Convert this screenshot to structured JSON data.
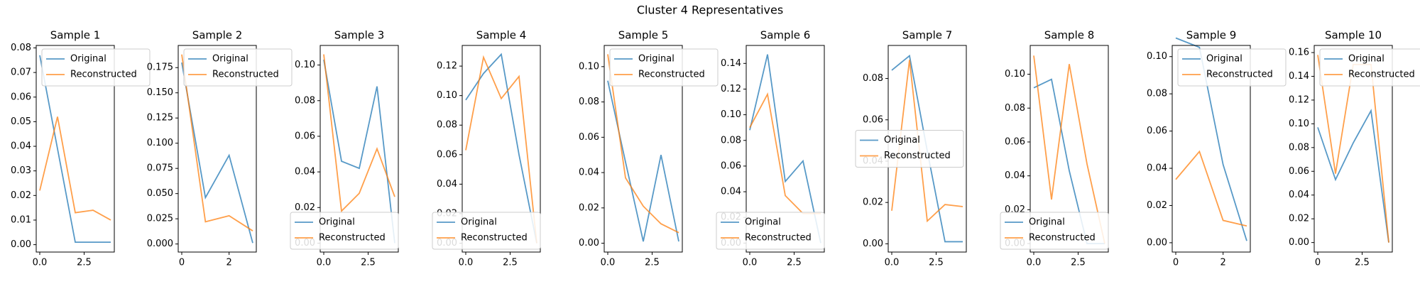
{
  "title": "Cluster 4 Representatives",
  "chart_data": [
    {
      "type": "line",
      "title": "Sample 1",
      "x": [
        0,
        1,
        2,
        3,
        4
      ],
      "series": [
        {
          "name": "Original",
          "color": "#1f77b4",
          "values": [
            0.077,
            0.039,
            0.001,
            0.001,
            0.001
          ]
        },
        {
          "name": "Reconstructed",
          "color": "#ff7f0e",
          "values": [
            0.022,
            0.052,
            0.013,
            0.014,
            0.01
          ]
        }
      ],
      "xlim": [
        -0.2,
        4.2
      ],
      "xticks": [
        {
          "value": 0,
          "label": "0.0"
        },
        2.5
      ],
      "ylim": [
        -0.003,
        0.081
      ],
      "yticks": [
        {
          "value": 0,
          "label": "0.00"
        },
        0.01,
        0.02,
        0.03,
        0.04,
        0.05,
        0.06,
        0.07,
        0.08
      ],
      "legend": "upper right"
    },
    {
      "type": "line",
      "title": "Sample 2",
      "x": [
        0,
        1,
        2,
        3
      ],
      "series": [
        {
          "name": "Original",
          "color": "#1f77b4",
          "values": [
            0.18,
            0.046,
            0.088,
            0.001
          ]
        },
        {
          "name": "Reconstructed",
          "color": "#ff7f0e",
          "values": [
            0.188,
            0.022,
            0.028,
            0.013
          ]
        }
      ],
      "xlim": [
        -0.15,
        3.15
      ],
      "xticks": [
        0,
        2
      ],
      "ylim": [
        -0.008,
        0.197
      ],
      "yticks": [
        {
          "value": 0,
          "label": "0.000"
        },
        0.025,
        {
          "value": 0.05,
          "label": "0.050"
        },
        0.075,
        {
          "value": 0.1,
          "label": "0.100"
        },
        0.125,
        {
          "value": 0.15,
          "label": "0.150"
        },
        0.175
      ],
      "legend": "upper right"
    },
    {
      "type": "line",
      "title": "Sample 3",
      "x": [
        0,
        1,
        2,
        3,
        4
      ],
      "series": [
        {
          "name": "Original",
          "color": "#1f77b4",
          "values": [
            0.103,
            0.046,
            0.042,
            0.088,
            0.0
          ]
        },
        {
          "name": "Reconstructed",
          "color": "#ff7f0e",
          "values": [
            0.106,
            0.018,
            0.028,
            0.053,
            0.026
          ]
        }
      ],
      "xlim": [
        -0.2,
        4.2
      ],
      "xticks": [
        {
          "value": 0,
          "label": "0.0"
        },
        2.5
      ],
      "ylim": [
        -0.005,
        0.111
      ],
      "yticks": [
        {
          "value": 0,
          "label": "0.00"
        },
        0.02,
        0.04,
        0.06,
        0.08,
        {
          "value": 0.1,
          "label": "0.10"
        }
      ],
      "legend": "lower left"
    },
    {
      "type": "line",
      "title": "Sample 4",
      "x": [
        0,
        1,
        2,
        3,
        4
      ],
      "series": [
        {
          "name": "Original",
          "color": "#1f77b4",
          "values": [
            0.097,
            0.115,
            0.128,
            0.06,
            0.0
          ]
        },
        {
          "name": "Reconstructed",
          "color": "#ff7f0e",
          "values": [
            0.063,
            0.126,
            0.098,
            0.113,
            0.0
          ]
        }
      ],
      "xlim": [
        -0.2,
        4.2
      ],
      "xticks": [
        {
          "value": 0,
          "label": "0.0"
        },
        2.5
      ],
      "ylim": [
        -0.006,
        0.134
      ],
      "yticks": [
        {
          "value": 0,
          "label": "0.00"
        },
        0.02,
        0.04,
        0.06,
        0.08,
        {
          "value": 0.1,
          "label": "0.10"
        },
        0.12
      ],
      "legend": "lower left"
    },
    {
      "type": "line",
      "title": "Sample 5",
      "x": [
        0,
        1,
        2,
        3,
        4
      ],
      "series": [
        {
          "name": "Original",
          "color": "#1f77b4",
          "values": [
            0.092,
            0.046,
            0.001,
            0.05,
            0.001
          ]
        },
        {
          "name": "Reconstructed",
          "color": "#ff7f0e",
          "values": [
            0.107,
            0.037,
            0.021,
            0.011,
            0.006
          ]
        }
      ],
      "xlim": [
        -0.2,
        4.2
      ],
      "xticks": [
        {
          "value": 0,
          "label": "0.0"
        },
        2.5
      ],
      "ylim": [
        -0.005,
        0.112
      ],
      "yticks": [
        {
          "value": 0,
          "label": "0.00"
        },
        0.02,
        0.04,
        0.06,
        0.08,
        {
          "value": 0.1,
          "label": "0.10"
        }
      ],
      "legend": "upper right"
    },
    {
      "type": "line",
      "title": "Sample 6",
      "x": [
        0,
        1,
        2,
        3,
        4
      ],
      "series": [
        {
          "name": "Original",
          "color": "#1f77b4",
          "values": [
            0.088,
            0.147,
            0.048,
            0.064,
            0.0
          ]
        },
        {
          "name": "Reconstructed",
          "color": "#ff7f0e",
          "values": [
            0.09,
            0.116,
            0.037,
            0.023,
            0.023
          ]
        }
      ],
      "xlim": [
        -0.2,
        4.2
      ],
      "xticks": [
        {
          "value": 0,
          "label": "0.0"
        },
        2.5
      ],
      "ylim": [
        -0.007,
        0.154
      ],
      "yticks": [
        {
          "value": 0,
          "label": "0.00"
        },
        0.02,
        0.04,
        0.06,
        0.08,
        {
          "value": 0.1,
          "label": "0.10"
        },
        0.12,
        0.14
      ],
      "legend": "lower left"
    },
    {
      "type": "line",
      "title": "Sample 7",
      "x": [
        0,
        1,
        2,
        3,
        4
      ],
      "series": [
        {
          "name": "Original",
          "color": "#1f77b4",
          "values": [
            0.084,
            0.091,
            0.045,
            0.001,
            0.001
          ]
        },
        {
          "name": "Reconstructed",
          "color": "#ff7f0e",
          "values": [
            0.016,
            0.089,
            0.011,
            0.019,
            0.018
          ]
        }
      ],
      "xlim": [
        -0.2,
        4.2
      ],
      "xticks": [
        {
          "value": 0,
          "label": "0.0"
        },
        2.5
      ],
      "ylim": [
        -0.004,
        0.096
      ],
      "yticks": [
        {
          "value": 0,
          "label": "0.00"
        },
        0.02,
        0.04,
        0.06,
        0.08
      ],
      "legend": "center left"
    },
    {
      "type": "line",
      "title": "Sample 8",
      "x": [
        0,
        1,
        2,
        3,
        4
      ],
      "series": [
        {
          "name": "Original",
          "color": "#1f77b4",
          "values": [
            0.092,
            0.097,
            0.043,
            0.0,
            0.0
          ]
        },
        {
          "name": "Reconstructed",
          "color": "#ff7f0e",
          "values": [
            0.111,
            0.026,
            0.106,
            0.047,
            0.0
          ]
        }
      ],
      "xlim": [
        -0.2,
        4.2
      ],
      "xticks": [
        {
          "value": 0,
          "label": "0.0"
        },
        2.5
      ],
      "ylim": [
        -0.005,
        0.117
      ],
      "yticks": [
        {
          "value": 0,
          "label": "0.00"
        },
        0.02,
        0.04,
        0.06,
        0.08,
        {
          "value": 0.1,
          "label": "0.10"
        }
      ],
      "legend": "lower left"
    },
    {
      "type": "line",
      "title": "Sample 9",
      "x": [
        0,
        1,
        2,
        3
      ],
      "series": [
        {
          "name": "Original",
          "color": "#1f77b4",
          "values": [
            0.11,
            0.105,
            0.042,
            0.001
          ]
        },
        {
          "name": "Reconstructed",
          "color": "#ff7f0e",
          "values": [
            0.034,
            0.049,
            0.012,
            0.009
          ]
        }
      ],
      "xlim": [
        -0.15,
        3.15
      ],
      "xticks": [
        0,
        2
      ],
      "ylim": [
        -0.005,
        0.106
      ],
      "yticks": [
        {
          "value": 0,
          "label": "0.00"
        },
        0.02,
        0.04,
        0.06,
        0.08,
        {
          "value": 0.1,
          "label": "0.10"
        }
      ],
      "legend": "upper right"
    },
    {
      "type": "line",
      "title": "Sample 10",
      "x": [
        0,
        1,
        2,
        3,
        4
      ],
      "series": [
        {
          "name": "Original",
          "color": "#1f77b4",
          "values": [
            0.097,
            0.053,
            0.084,
            0.111,
            0.0
          ]
        },
        {
          "name": "Reconstructed",
          "color": "#ff7f0e",
          "values": [
            0.158,
            0.058,
            0.15,
            0.15,
            0.0
          ]
        }
      ],
      "xlim": [
        -0.2,
        4.2
      ],
      "xticks": [
        {
          "value": 0,
          "label": "0"
        },
        2.5
      ],
      "ylim": [
        -0.008,
        0.166
      ],
      "yticks": [
        {
          "value": 0,
          "label": "0.00"
        },
        0.02,
        0.04,
        0.06,
        0.08,
        {
          "value": 0.1,
          "label": "0.10"
        },
        0.12,
        0.14,
        {
          "value": 0.16,
          "label": "0.16"
        }
      ],
      "legend": "upper right"
    }
  ]
}
